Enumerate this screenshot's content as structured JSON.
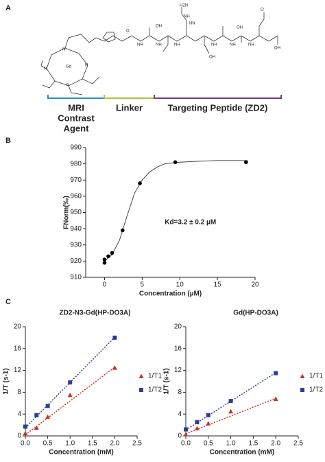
{
  "panels": [
    "A",
    "B",
    "C"
  ],
  "structure": {
    "atoms": [
      "H2N",
      "NH",
      "HN",
      "OH",
      "OH",
      "OH",
      "OH",
      "O",
      "Gd",
      "N",
      "N",
      "N",
      "N",
      "NH",
      "NH",
      "NH",
      "NH",
      "NH",
      "NH",
      "O"
    ],
    "segments": [
      {
        "lines": [
          "MRI",
          "Contrast",
          "Agent"
        ],
        "color": "#2a8fc0"
      },
      {
        "lines": [
          "Linker"
        ],
        "color": "#a8c83c"
      },
      {
        "lines": [
          "Targeting Peptide (ZD2)"
        ],
        "color": "#6b3c94"
      }
    ]
  },
  "chart_data": [
    {
      "type": "scatter",
      "x_label": "Concentration (µM)",
      "y_label": "FNorm(‰)",
      "annotation": "Kd=3.2 ± 0.2 µM",
      "color": "#000000",
      "x": [
        0,
        0,
        0.5,
        1,
        2.4,
        4.7,
        9.4,
        18.8
      ],
      "values": [
        919,
        921,
        923,
        925,
        939,
        968,
        981,
        981
      ],
      "fit_x": [
        0,
        1,
        2,
        3,
        4,
        5,
        6,
        7,
        8,
        10,
        12,
        15,
        19
      ],
      "fit_values": [
        920,
        924,
        933,
        948,
        962,
        970,
        975,
        978,
        980,
        981,
        981.5,
        982,
        982
      ],
      "xlim": [
        -2.5,
        20
      ],
      "ylim": [
        910,
        990
      ],
      "xticks": [
        0,
        5,
        10,
        15,
        20
      ],
      "yticks": [
        910,
        920,
        930,
        940,
        950,
        960,
        970,
        980,
        990
      ]
    },
    {
      "type": "scatter",
      "title": "ZD2-N3-Gd(HP-DO3A)",
      "x_label": "Concentration (mM)",
      "y_label": "1/T (s-1)",
      "xlim": [
        0,
        2.5
      ],
      "ylim": [
        0,
        20
      ],
      "xticks": [
        {
          "value": 0,
          "label": "0.0"
        },
        0.5,
        {
          "value": 1,
          "label": "1.0"
        },
        1.5,
        {
          "value": 2,
          "label": "2.0"
        },
        2.5
      ],
      "yticks": [
        0,
        4,
        8,
        12,
        16,
        20
      ],
      "series": [
        {
          "name": "1/T1",
          "color": "#c8322d",
          "marker": "triangle",
          "x": [
            0,
            0.25,
            0.5,
            1,
            2
          ],
          "values": [
            0.5,
            1.5,
            3.5,
            7.5,
            12.5
          ],
          "fit_x": [
            0,
            2
          ],
          "fit_values": [
            0.2,
            12.6
          ]
        },
        {
          "name": "1/T2",
          "color": "#2b3d9a",
          "marker": "square",
          "x": [
            0,
            0.25,
            0.5,
            1,
            2
          ],
          "values": [
            1.7,
            3.8,
            5.5,
            9.8,
            18
          ],
          "fit_x": [
            0,
            2
          ],
          "fit_values": [
            1.5,
            18.1
          ]
        }
      ]
    },
    {
      "type": "scatter",
      "title": "Gd(HP-DO3A)",
      "x_label": "Concentration (mM)",
      "y_label": "1/T (s-1)",
      "xlim": [
        0,
        2.5
      ],
      "ylim": [
        0,
        20
      ],
      "xticks": [
        {
          "value": 0,
          "label": "0.0"
        },
        0.5,
        {
          "value": 1,
          "label": "1.0"
        },
        1.5,
        {
          "value": 2,
          "label": "2.0"
        },
        2.5
      ],
      "yticks": [
        0,
        4,
        8,
        12,
        16,
        20
      ],
      "series": [
        {
          "name": "1/T1",
          "color": "#c8322d",
          "marker": "triangle",
          "x": [
            0,
            0.25,
            0.5,
            1,
            2
          ],
          "values": [
            0.3,
            1.4,
            2.3,
            4.5,
            6.8
          ],
          "fit_x": [
            0,
            2
          ],
          "fit_values": [
            0.4,
            6.9
          ]
        },
        {
          "name": "1/T2",
          "color": "#2b3d9a",
          "marker": "square",
          "x": [
            0,
            0.25,
            0.5,
            1,
            2
          ],
          "values": [
            1.2,
            2.5,
            3.8,
            6.4,
            11.5
          ],
          "fit_x": [
            0,
            2
          ],
          "fit_values": [
            1.1,
            11.6
          ]
        }
      ]
    }
  ]
}
